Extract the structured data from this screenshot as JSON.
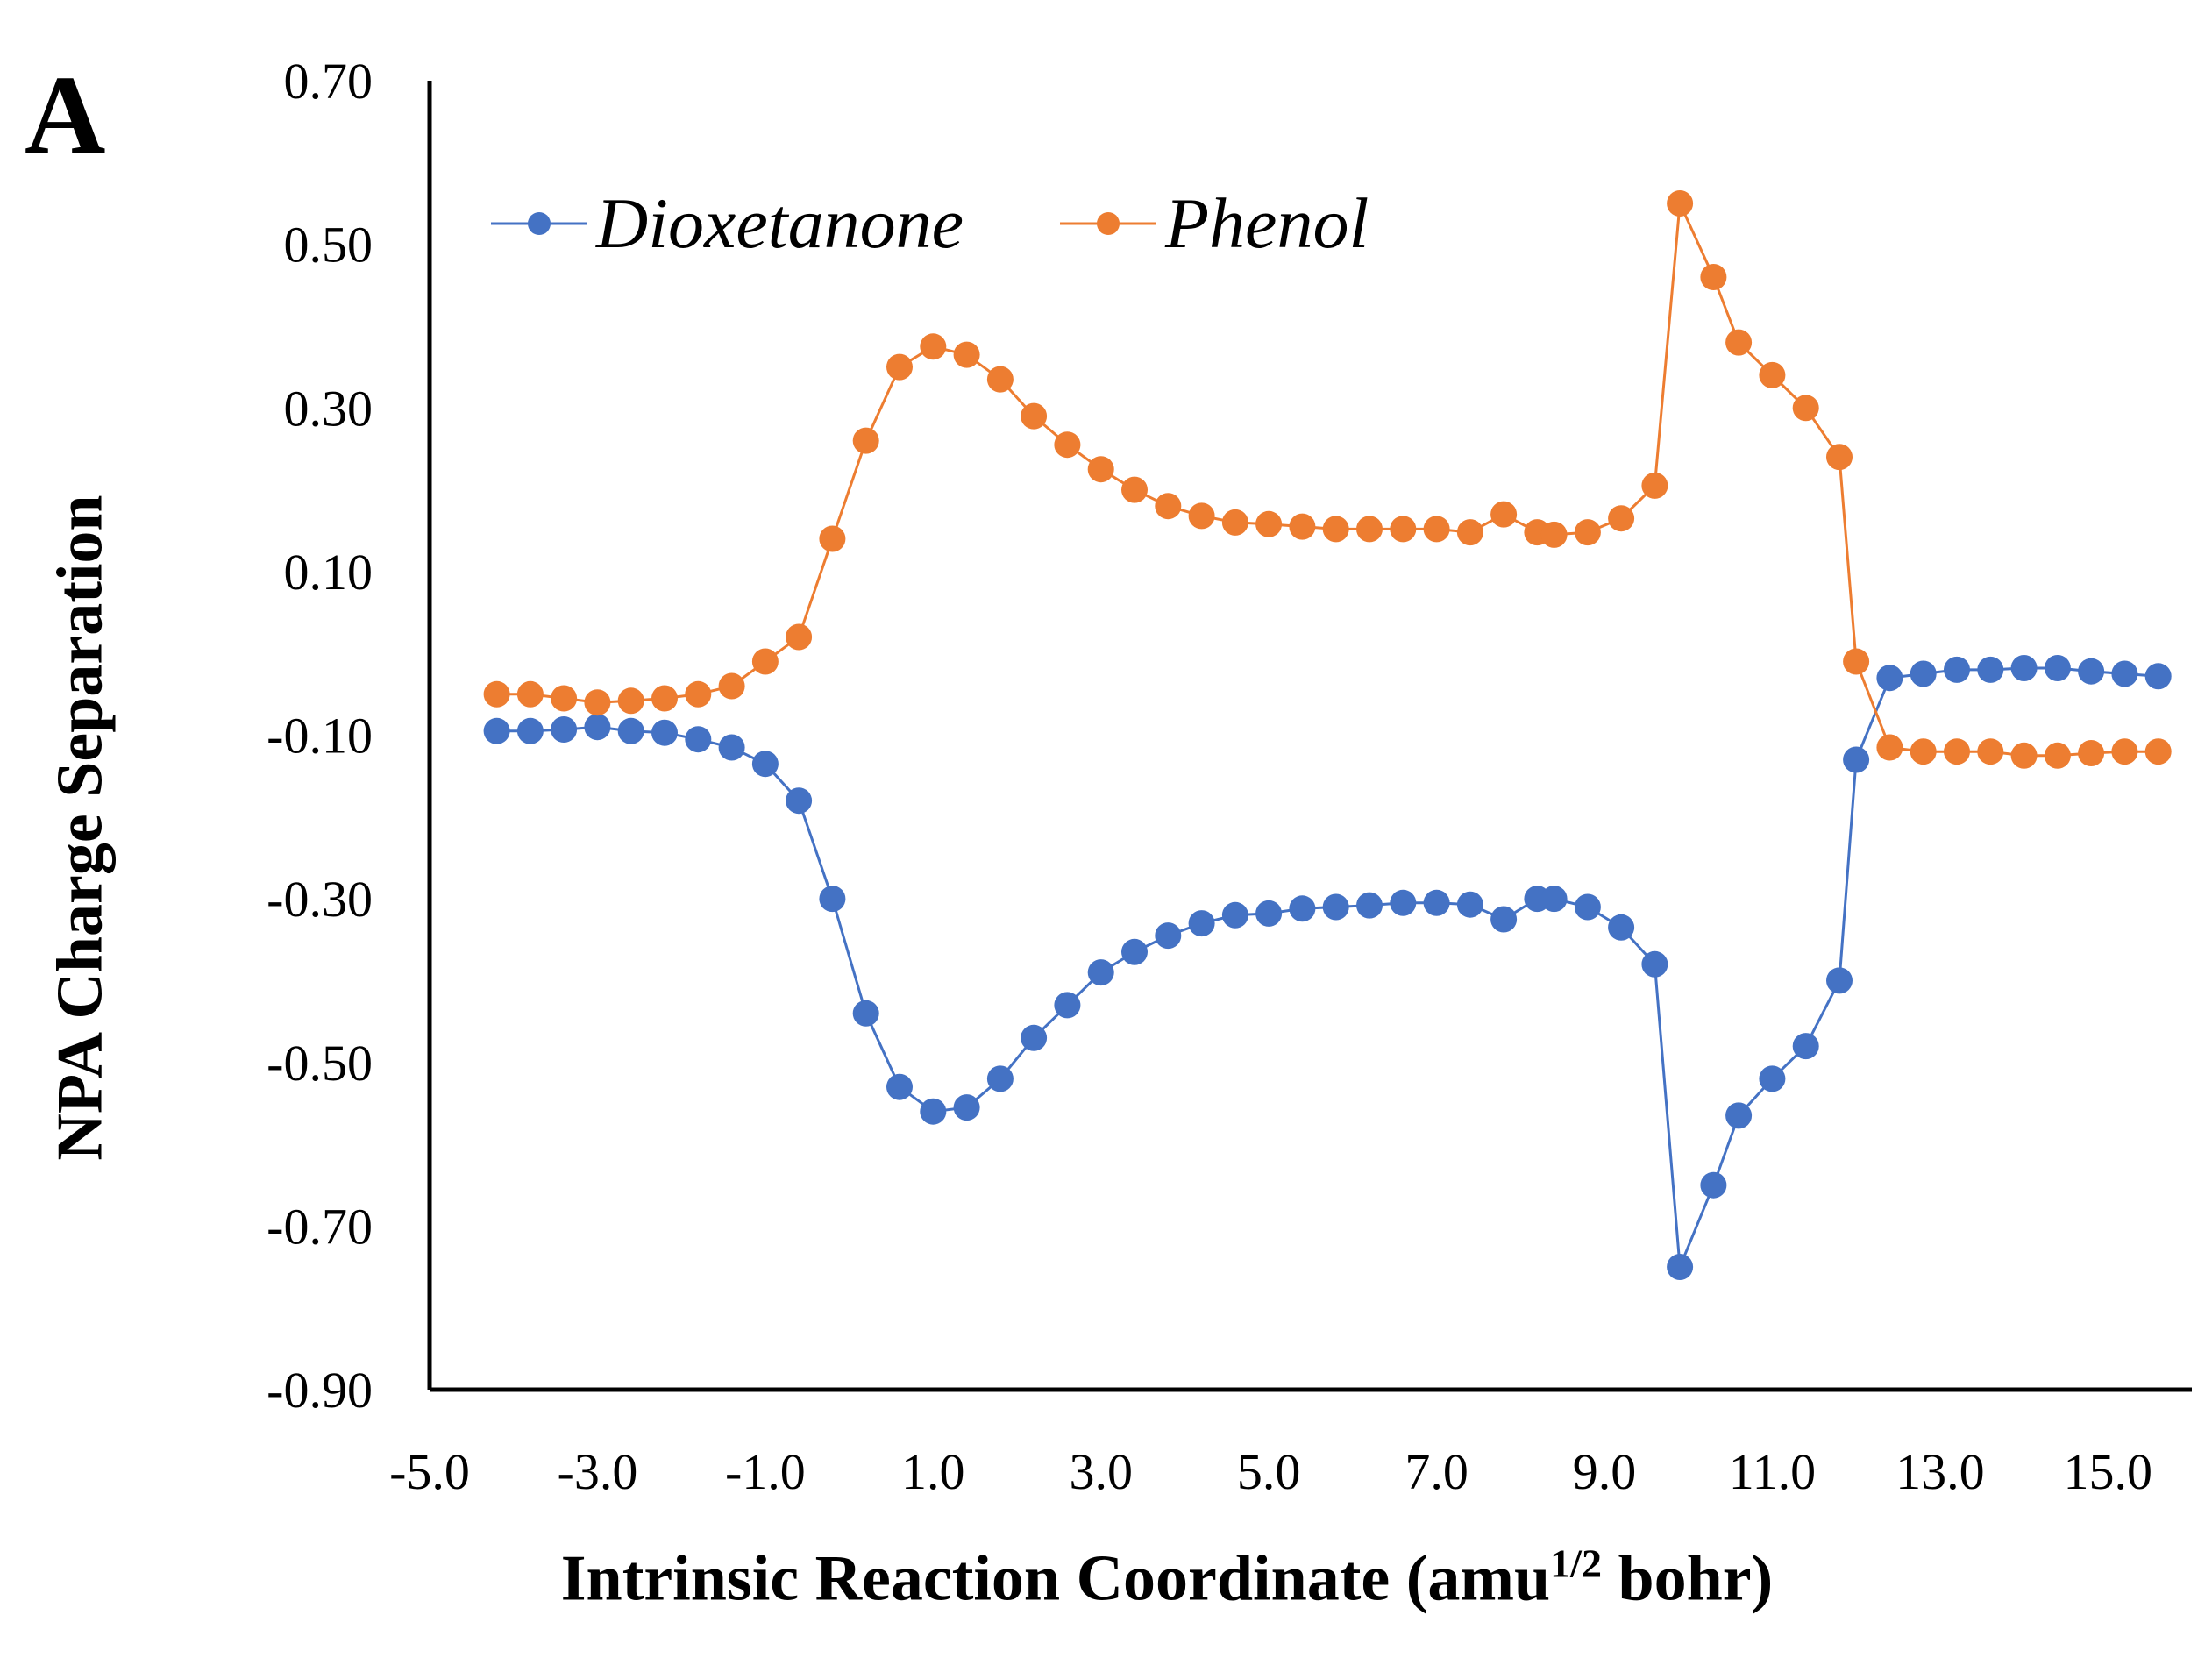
{
  "panel_label": "A",
  "chart_data": {
    "type": "line",
    "ylabel": "NPA Charge Separation",
    "xlabel_main": "Intrinsic  Reaction Coordinate  (amu",
    "xlabel_sup": "1/2",
    "xlabel_tail": " bohr)",
    "xlim": [
      -5.0,
      16.0
    ],
    "ylim": [
      -0.9,
      0.7
    ],
    "x_ticks": [
      "-5.0",
      "-3.0",
      "-1.0",
      "1.0",
      "3.0",
      "5.0",
      "7.0",
      "9.0",
      "11.0",
      "13.0",
      "15.0"
    ],
    "y_ticks": [
      "0.70",
      "0.50",
      "0.30",
      "0.10",
      "-0.10",
      "-0.30",
      "-0.50",
      "-0.70",
      "-0.90"
    ],
    "legend_position": "top",
    "grid": false,
    "series": [
      {
        "name": "Dioxetanone",
        "color": "#4472C4",
        "x": [
          -4.2,
          -3.8,
          -3.4,
          -3.0,
          -2.6,
          -2.2,
          -1.8,
          -1.4,
          -1.0,
          -0.6,
          -0.2,
          0.2,
          0.6,
          1.0,
          1.4,
          1.8,
          2.2,
          2.6,
          3.0,
          3.4,
          3.8,
          4.2,
          4.6,
          5.0,
          5.4,
          5.8,
          6.2,
          6.6,
          7.0,
          7.4,
          7.8,
          8.2,
          8.4,
          8.8,
          9.2,
          9.6,
          9.9,
          10.3,
          10.6,
          11.0,
          11.4,
          11.8,
          12.0,
          12.4,
          12.8,
          13.2,
          13.6,
          14.0,
          14.4,
          14.8,
          15.2,
          15.6
        ],
        "y": [
          -0.095,
          -0.095,
          -0.093,
          -0.09,
          -0.095,
          -0.097,
          -0.105,
          -0.115,
          -0.135,
          -0.18,
          -0.3,
          -0.44,
          -0.53,
          -0.56,
          -0.555,
          -0.52,
          -0.47,
          -0.43,
          -0.39,
          -0.365,
          -0.345,
          -0.33,
          -0.32,
          -0.318,
          -0.312,
          -0.31,
          -0.308,
          -0.305,
          -0.305,
          -0.307,
          -0.325,
          -0.3,
          -0.3,
          -0.31,
          -0.335,
          -0.38,
          -0.75,
          -0.65,
          -0.565,
          -0.52,
          -0.48,
          -0.4,
          -0.13,
          -0.03,
          -0.025,
          -0.02,
          -0.02,
          -0.018,
          -0.018,
          -0.022,
          -0.025,
          -0.028
        ]
      },
      {
        "name": "Phenol",
        "color": "#ED7D31",
        "x": [
          -4.2,
          -3.8,
          -3.4,
          -3.0,
          -2.6,
          -2.2,
          -1.8,
          -1.4,
          -1.0,
          -0.6,
          -0.2,
          0.2,
          0.6,
          1.0,
          1.4,
          1.8,
          2.2,
          2.6,
          3.0,
          3.4,
          3.8,
          4.2,
          4.6,
          5.0,
          5.4,
          5.8,
          6.2,
          6.6,
          7.0,
          7.4,
          7.8,
          8.2,
          8.4,
          8.8,
          9.2,
          9.6,
          9.9,
          10.3,
          10.6,
          11.0,
          11.4,
          11.8,
          12.0,
          12.4,
          12.8,
          13.2,
          13.6,
          14.0,
          14.4,
          14.8,
          15.2,
          15.6
        ],
        "y": [
          -0.05,
          -0.05,
          -0.055,
          -0.06,
          -0.058,
          -0.055,
          -0.05,
          -0.04,
          -0.01,
          0.02,
          0.14,
          0.26,
          0.35,
          0.375,
          0.365,
          0.335,
          0.29,
          0.255,
          0.225,
          0.2,
          0.18,
          0.168,
          0.16,
          0.158,
          0.155,
          0.152,
          0.152,
          0.152,
          0.152,
          0.148,
          0.17,
          0.148,
          0.145,
          0.148,
          0.165,
          0.205,
          0.55,
          0.46,
          0.38,
          0.34,
          0.3,
          0.24,
          -0.01,
          -0.115,
          -0.12,
          -0.12,
          -0.12,
          -0.125,
          -0.125,
          -0.122,
          -0.12,
          -0.12
        ]
      }
    ]
  }
}
